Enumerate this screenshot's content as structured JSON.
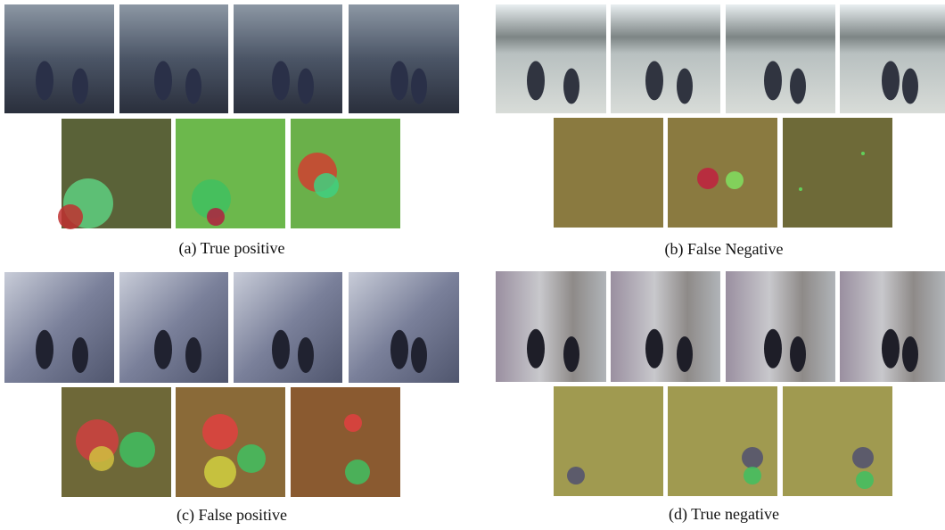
{
  "panels": [
    {
      "caption": "(a) True positive"
    },
    {
      "caption": "(b) False Negative"
    },
    {
      "caption": "(c) False positive"
    },
    {
      "caption": "(d) True negative"
    }
  ]
}
